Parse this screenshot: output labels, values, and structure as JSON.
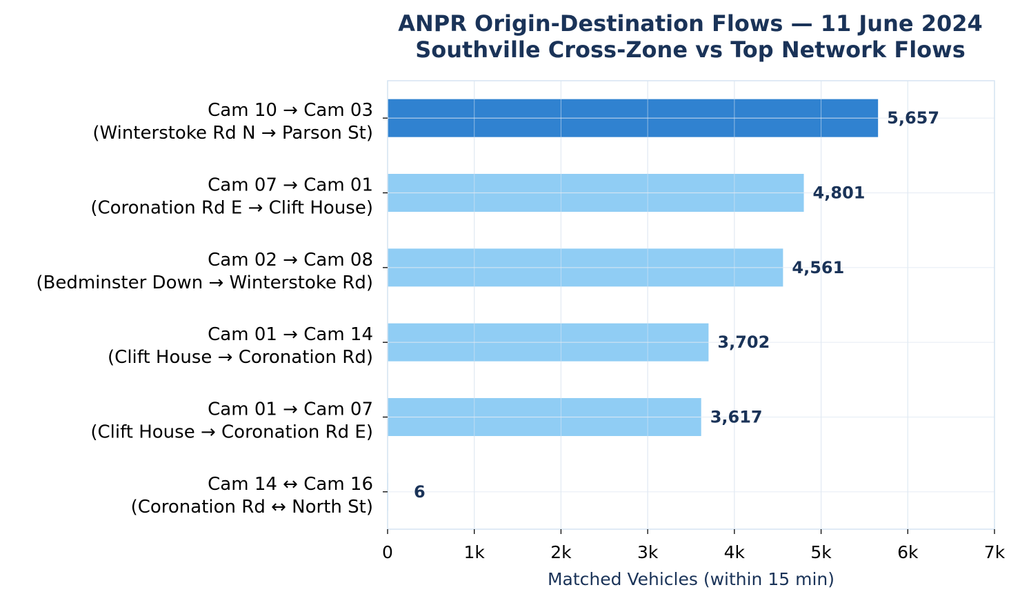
{
  "chart_data": {
    "type": "bar",
    "orientation": "horizontal",
    "title_lines": [
      "ANPR Origin-Destination Flows — 11 June 2024",
      "Southville Cross-Zone vs Top Network Flows"
    ],
    "xlabel": "Matched Vehicles (within 15 min)",
    "ylabel": "",
    "xlim": [
      0,
      7000
    ],
    "xticks": [
      0,
      1000,
      2000,
      3000,
      4000,
      5000,
      6000,
      7000
    ],
    "xtick_labels": [
      "0",
      "1k",
      "2k",
      "3k",
      "4k",
      "5k",
      "6k",
      "7k"
    ],
    "grid": true,
    "categories": [
      {
        "line1": "Cam 10 → Cam 03",
        "line2": "(Winterstoke Rd N → Parson St)"
      },
      {
        "line1": "Cam 07 → Cam 01",
        "line2": "(Coronation Rd E → Clift House)"
      },
      {
        "line1": "Cam 02 → Cam 08",
        "line2": "(Bedminster Down → Winterstoke Rd)"
      },
      {
        "line1": "Cam 01 → Cam 14",
        "line2": "(Clift House → Coronation Rd)"
      },
      {
        "line1": "Cam 01 → Cam 07",
        "line2": "(Clift House → Coronation Rd E)"
      },
      {
        "line1": "Cam 14 ↔ Cam 16",
        "line2": "(Coronation Rd ↔ North St)"
      }
    ],
    "values": [
      5657,
      4801,
      4561,
      3702,
      3617,
      6
    ],
    "value_labels": [
      "5,657",
      "4,801",
      "4,561",
      "3,702",
      "3,617",
      "6"
    ],
    "bar_colors": [
      "#3082d0",
      "#90cdf4",
      "#90cdf4",
      "#90cdf4",
      "#90cdf4",
      "#90cdf4"
    ],
    "colors": {
      "title": "#1a3358",
      "grid": "#e2eaf3",
      "spine": "#d6e4f2",
      "value_label": "#1a3358"
    }
  }
}
